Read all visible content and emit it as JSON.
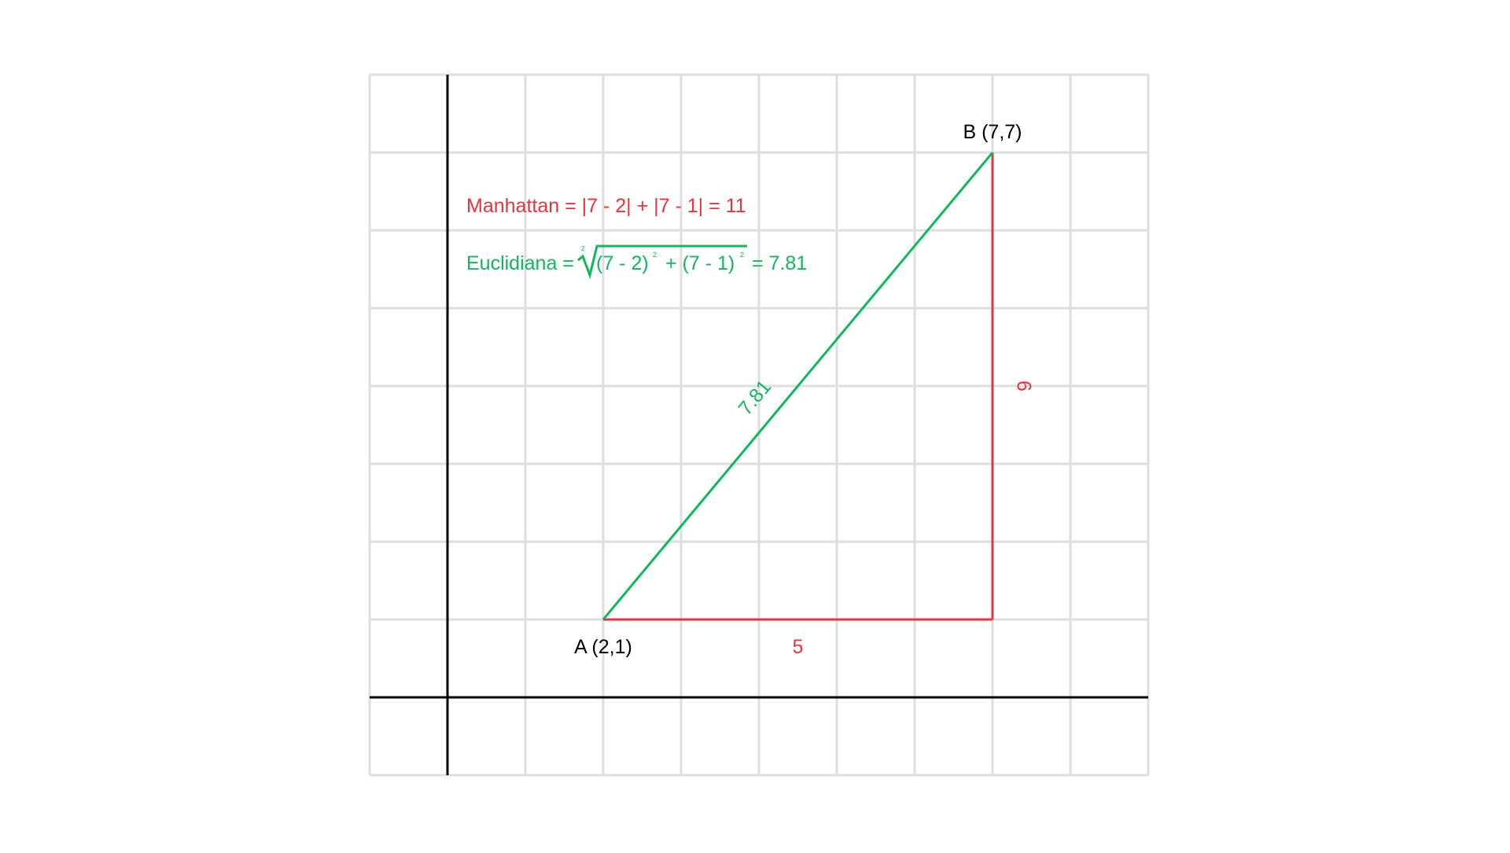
{
  "colors": {
    "background": "#ffffff",
    "grid": "#dedede",
    "axis": "#000000",
    "euclidean": "#10b85c",
    "manhattan": "#e8343c",
    "point_label": "#000000"
  },
  "points": {
    "a": {
      "label": "A (2,1)",
      "x": 2,
      "y": 1
    },
    "b": {
      "label": "B (7,7)",
      "x": 7,
      "y": 7
    }
  },
  "grid": {
    "x_min": -1,
    "x_max": 9,
    "y_min": -1,
    "y_max": 8,
    "step": 1,
    "shown": true
  },
  "segments": {
    "horizontal_label": "5",
    "vertical_label": "6",
    "hypotenuse_label": "7.81"
  },
  "formulas": {
    "manhattan": "Manhattan = |7 - 2| + |7 - 1| = 11",
    "euclidean_prefix": "Euclidiana =",
    "root_index": "2",
    "term1": "(7 - 2)",
    "exp1": "2",
    "plus": "+ (7 - 1)",
    "exp2": "2",
    "euclidean_result": "= 7.81"
  }
}
